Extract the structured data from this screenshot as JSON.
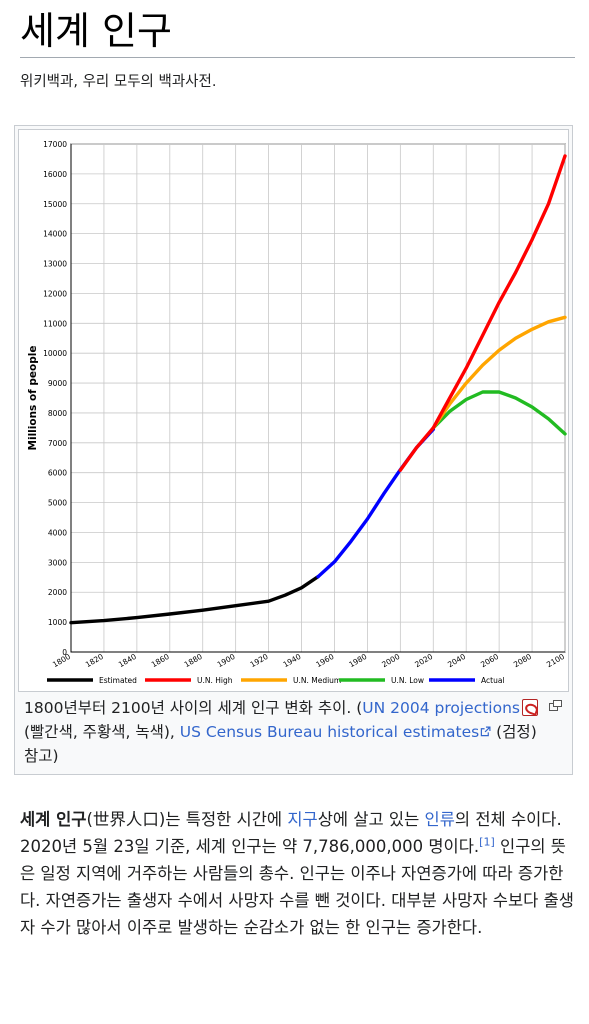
{
  "article": {
    "title": "세계 인구",
    "site_subtitle": "위키백과, 우리 모두의 백과사전."
  },
  "figure": {
    "caption_part1": "1800년부터 2100년 사이의 세계 인구 변화 추이. (",
    "caption_link1": "UN 2004 projections",
    "caption_part2": " (빨간색, 주황색, 녹색), ",
    "caption_link2": "US Census Bureau historical estimates",
    "caption_part3": " (검정) 참고)"
  },
  "body": {
    "bold_term": "세계 인구",
    "seg1": "(世界人口)는 특정한 시간에 ",
    "link_earth": "지구",
    "seg2": "상에 살고 있는 ",
    "link_humanity": "인류",
    "seg3": "의 전체 수이다. 2020년 5월 23일 기준, 세계 인구는 약 7,786,000,000 명이다.",
    "ref": "[1]",
    "seg4": " 인구의 뜻은 일정 지역에 거주하는 사람들의 총수. 인구는 이주나 자연증가에 따라 증가한다. 자연증가는 출생자 수에서 사망자 수를 뺀 것이다. 대부분 사망자 수보다 출생자 수가 많아서 이주로 발생하는 순감소가 없는 한 인구는 증가한다."
  },
  "icons": {
    "pdf": "pdf-icon",
    "external": "external-link-icon",
    "enlarge": "magnify-icon"
  },
  "chart_data": {
    "type": "line",
    "title": "",
    "xlabel": "",
    "ylabel": "Millions of people",
    "xlim": [
      1800,
      2100
    ],
    "ylim": [
      0,
      17000
    ],
    "x_ticks": [
      1800,
      1820,
      1840,
      1860,
      1880,
      1900,
      1920,
      1940,
      1960,
      1980,
      2000,
      2020,
      2040,
      2060,
      2080,
      2100
    ],
    "y_ticks": [
      0,
      1000,
      2000,
      3000,
      4000,
      5000,
      6000,
      7000,
      8000,
      9000,
      10000,
      11000,
      12000,
      13000,
      14000,
      15000,
      16000,
      17000
    ],
    "grid": true,
    "legend_position": "bottom",
    "series": [
      {
        "name": "Estimated",
        "color": "#000000",
        "points": [
          [
            1800,
            980
          ],
          [
            1820,
            1050
          ],
          [
            1840,
            1150
          ],
          [
            1860,
            1270
          ],
          [
            1880,
            1400
          ],
          [
            1900,
            1550
          ],
          [
            1920,
            1700
          ],
          [
            1925,
            1800
          ],
          [
            1930,
            1900
          ],
          [
            1940,
            2150
          ],
          [
            1950,
            2520
          ]
        ]
      },
      {
        "name": "U.N. High",
        "color": "#ff0000",
        "points": [
          [
            2000,
            6080
          ],
          [
            2010,
            6850
          ],
          [
            2020,
            7500
          ],
          [
            2030,
            8500
          ],
          [
            2040,
            9500
          ],
          [
            2050,
            10600
          ],
          [
            2060,
            11700
          ],
          [
            2070,
            12700
          ],
          [
            2080,
            13800
          ],
          [
            2090,
            15000
          ],
          [
            2100,
            16600
          ]
        ]
      },
      {
        "name": "U.N. Medium",
        "color": "#ffa500",
        "points": [
          [
            2020,
            7500
          ],
          [
            2030,
            8300
          ],
          [
            2040,
            9000
          ],
          [
            2050,
            9600
          ],
          [
            2060,
            10100
          ],
          [
            2070,
            10500
          ],
          [
            2080,
            10800
          ],
          [
            2090,
            11050
          ],
          [
            2100,
            11200
          ]
        ]
      },
      {
        "name": "U.N. Low",
        "color": "#22bb22",
        "points": [
          [
            2020,
            7500
          ],
          [
            2030,
            8050
          ],
          [
            2040,
            8450
          ],
          [
            2050,
            8700
          ],
          [
            2060,
            8700
          ],
          [
            2070,
            8500
          ],
          [
            2080,
            8200
          ],
          [
            2090,
            7800
          ],
          [
            2100,
            7300
          ]
        ]
      },
      {
        "name": "Actual",
        "color": "#0000ff",
        "points": [
          [
            1950,
            2520
          ],
          [
            1960,
            3020
          ],
          [
            1970,
            3700
          ],
          [
            1980,
            4450
          ],
          [
            1990,
            5300
          ],
          [
            2000,
            6100
          ],
          [
            2010,
            6850
          ],
          [
            2020,
            7450
          ]
        ]
      }
    ]
  }
}
